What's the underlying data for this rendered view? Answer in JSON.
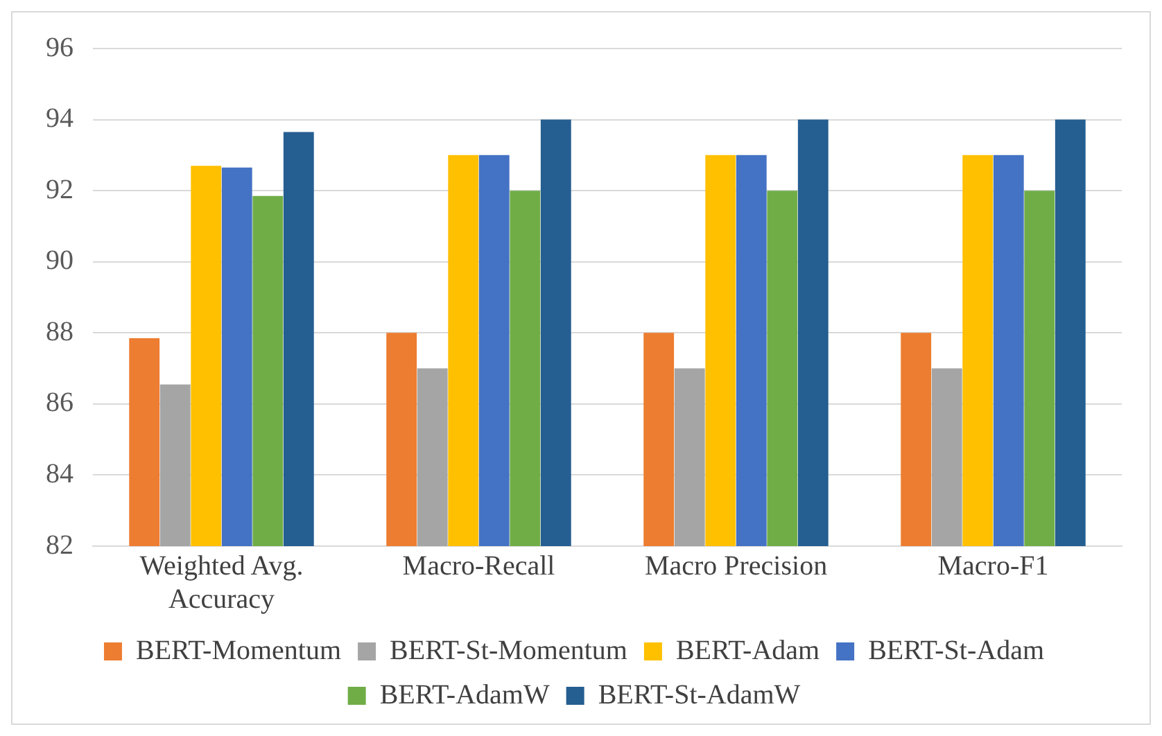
{
  "chart_data": {
    "type": "bar",
    "categories": [
      "Weighted Avg. Accuracy",
      "Macro-Recall",
      "Macro Precision",
      "Macro-F1"
    ],
    "series": [
      {
        "name": "BERT-Momentum",
        "color": "#ed7d31",
        "values": [
          87.85,
          88,
          88,
          88
        ]
      },
      {
        "name": "BERT-St-Momentum",
        "color": "#a5a5a5",
        "values": [
          86.55,
          87,
          87,
          87
        ]
      },
      {
        "name": "BERT-Adam",
        "color": "#ffc000",
        "values": [
          92.7,
          93,
          93,
          93
        ]
      },
      {
        "name": "BERT-St-Adam",
        "color": "#4472c4",
        "values": [
          92.65,
          93,
          93,
          93
        ]
      },
      {
        "name": "BERT-AdamW",
        "color": "#70ad47",
        "values": [
          91.85,
          92,
          92,
          92
        ]
      },
      {
        "name": "BERT-St-AdamW",
        "color": "#255e91",
        "values": [
          93.65,
          94,
          94,
          94
        ]
      }
    ],
    "ylim": [
      82,
      96
    ],
    "yticks": [
      82,
      84,
      86,
      88,
      90,
      92,
      94,
      96
    ],
    "grid": "y",
    "legend": "bottom"
  }
}
